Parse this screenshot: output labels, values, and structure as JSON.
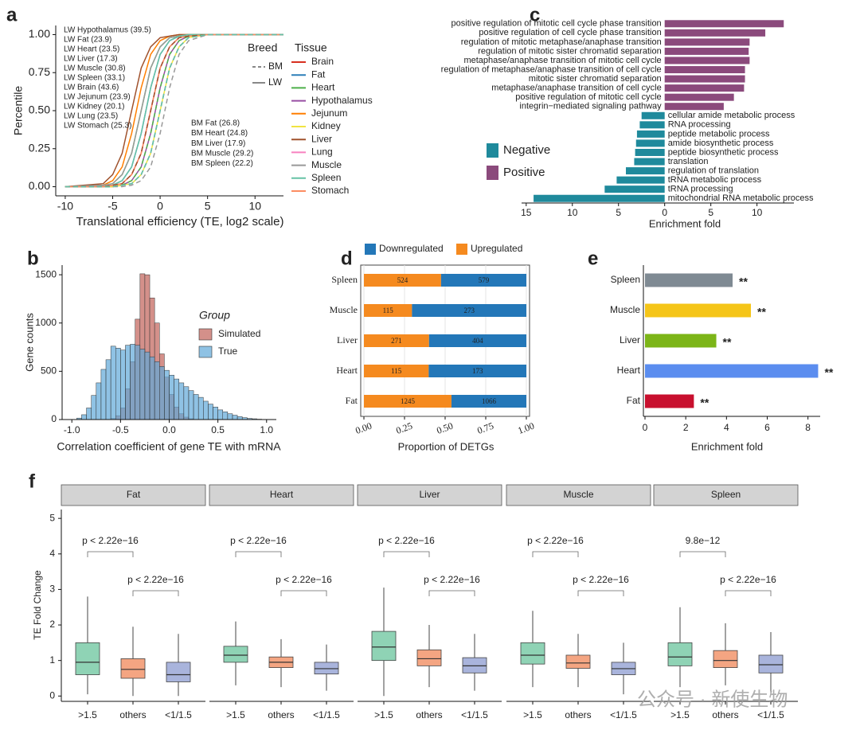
{
  "watermark": "公众号 · 新使生物",
  "chart_data": [
    {
      "type": "line",
      "label": "a",
      "xlabel": "Translational efficiency (TE, log2 scale)",
      "ylabel": "Percentile",
      "x": [
        -10,
        -6,
        -5,
        -4,
        -3,
        -2,
        -1,
        0,
        1,
        2,
        3,
        5,
        13
      ],
      "xlim": [
        -11,
        13
      ],
      "xticks": [
        -10,
        -5,
        0,
        5,
        10
      ],
      "ylim": [
        -0.06,
        1.06
      ],
      "yticks": [
        {
          "value": 0,
          "label": "0.00"
        },
        {
          "value": 0.25,
          "label": "0.25"
        },
        {
          "value": 0.5,
          "label": "0.50"
        },
        {
          "value": 0.75,
          "label": "0.75"
        },
        {
          "value": 1,
          "label": "1.00"
        }
      ],
      "legend_title": "Tissue",
      "breed_title": "Breed",
      "breeds": [
        "BM",
        "LW"
      ],
      "series": [
        {
          "name": "Brain",
          "breed": "LW",
          "color": "#d7301f",
          "values": [
            0,
            0,
            0.01,
            0.02,
            0.08,
            0.22,
            0.5,
            0.78,
            0.92,
            0.98,
            0.99,
            1,
            1
          ]
        },
        {
          "name": "Fat",
          "breed": "LW",
          "color": "#2c7fb8",
          "values": [
            0,
            0,
            0.01,
            0.04,
            0.13,
            0.35,
            0.65,
            0.87,
            0.96,
            0.99,
            1,
            1,
            1
          ]
        },
        {
          "name": "Heart",
          "breed": "LW",
          "color": "#4daf4a",
          "values": [
            0,
            0.01,
            0.02,
            0.08,
            0.22,
            0.5,
            0.78,
            0.92,
            0.98,
            0.99,
            1,
            1,
            1
          ]
        },
        {
          "name": "Hypothalamus",
          "breed": "LW",
          "color": "#984ea3",
          "values": [
            0,
            0,
            0,
            0.01,
            0.04,
            0.13,
            0.35,
            0.65,
            0.87,
            0.96,
            0.99,
            1,
            1
          ]
        },
        {
          "name": "Jejunum",
          "breed": "LW",
          "color": "#ff7f00",
          "values": [
            0,
            0.01,
            0.04,
            0.13,
            0.35,
            0.65,
            0.87,
            0.96,
            0.99,
            1,
            1,
            1,
            1
          ]
        },
        {
          "name": "Kidney",
          "breed": "LW",
          "color": "#f0e442",
          "values": [
            0,
            0,
            0,
            0.01,
            0.02,
            0.08,
            0.22,
            0.5,
            0.78,
            0.92,
            0.98,
            1,
            1
          ]
        },
        {
          "name": "Liver",
          "breed": "LW",
          "color": "#a0522d",
          "values": [
            0,
            0.02,
            0.08,
            0.22,
            0.5,
            0.78,
            0.92,
            0.98,
            0.99,
            1,
            1,
            1,
            1
          ]
        },
        {
          "name": "Lung",
          "breed": "LW",
          "color": "#f781bf",
          "values": [
            0,
            0,
            0.01,
            0.02,
            0.08,
            0.22,
            0.5,
            0.78,
            0.92,
            0.98,
            0.99,
            1,
            1
          ]
        },
        {
          "name": "Muscle",
          "breed": "LW",
          "color": "#999999",
          "values": [
            0,
            0.01,
            0.02,
            0.08,
            0.22,
            0.5,
            0.78,
            0.92,
            0.98,
            0.99,
            1,
            1,
            1
          ]
        },
        {
          "name": "Spleen",
          "breed": "LW",
          "color": "#66c2a5",
          "values": [
            0,
            0,
            0.01,
            0.04,
            0.13,
            0.35,
            0.65,
            0.87,
            0.96,
            0.99,
            1,
            1,
            1
          ]
        },
        {
          "name": "Stomach",
          "breed": "LW",
          "color": "#fc8d62",
          "values": [
            0,
            0,
            0.01,
            0.02,
            0.08,
            0.22,
            0.5,
            0.78,
            0.92,
            0.98,
            0.99,
            1,
            1
          ]
        },
        {
          "name": "Fat",
          "breed": "BM",
          "color": "#2c7fb8",
          "values": [
            0,
            0,
            0,
            0.01,
            0.02,
            0.08,
            0.22,
            0.5,
            0.78,
            0.92,
            0.98,
            1,
            1
          ]
        },
        {
          "name": "Heart",
          "breed": "BM",
          "color": "#4daf4a",
          "values": [
            0,
            0,
            0,
            0.01,
            0.04,
            0.13,
            0.35,
            0.65,
            0.87,
            0.96,
            0.99,
            1,
            1
          ]
        },
        {
          "name": "Liver",
          "breed": "BM",
          "color": "#a0522d",
          "values": [
            0,
            0,
            0.01,
            0.02,
            0.08,
            0.22,
            0.5,
            0.78,
            0.92,
            0.98,
            0.99,
            1,
            1
          ]
        },
        {
          "name": "Muscle",
          "breed": "BM",
          "color": "#999999",
          "values": [
            0,
            0,
            0,
            0,
            0.01,
            0.04,
            0.13,
            0.35,
            0.65,
            0.87,
            0.96,
            1,
            1
          ]
        },
        {
          "name": "Spleen",
          "breed": "BM",
          "color": "#66c2a5",
          "values": [
            0,
            0,
            0,
            0.01,
            0.02,
            0.08,
            0.22,
            0.5,
            0.78,
            0.92,
            0.98,
            1,
            1
          ]
        }
      ],
      "lw_labels": [
        "LW Hypothalamus (39.5)",
        "LW Fat (23.9)",
        "LW Heart (23.5)",
        "LW Liver (17.3)",
        "LW Muscle (30.8)",
        "LW Spleen (33.1)",
        "LW Brain (43.6)",
        "LW Jejunum (23.9)",
        "LW Kidney (20.1)",
        "LW Lung (23.5)",
        "LW Stomach (25.3)"
      ],
      "bm_labels": [
        "BM Fat (26.8)",
        "BM Heart (24.8)",
        "BM Liver (17.9)",
        "BM Muscle (29.2)",
        "BM Spleen (22.2)"
      ]
    },
    {
      "type": "histogram",
      "label": "b",
      "xlabel": "Correlation coefficient of gene TE with mRNA",
      "ylabel": "Gene counts",
      "legend_title": "Group",
      "bins": [
        -0.95,
        -0.9,
        -0.85,
        -0.8,
        -0.75,
        -0.7,
        -0.65,
        -0.6,
        -0.55,
        -0.5,
        -0.45,
        -0.4,
        -0.35,
        -0.3,
        -0.25,
        -0.2,
        -0.15,
        -0.1,
        -0.05,
        0,
        0.05,
        0.1,
        0.15,
        0.2,
        0.25,
        0.3,
        0.35,
        0.4,
        0.45,
        0.5,
        0.55,
        0.6,
        0.65,
        0.7,
        0.75,
        0.8,
        0.85,
        0.9,
        0.95,
        1.0
      ],
      "series": [
        {
          "name": "Simulated",
          "color": "#d4908a",
          "values": [
            0,
            0,
            0,
            0,
            0,
            0,
            0,
            10,
            40,
            120,
            320,
            600,
            1040,
            1510,
            1500,
            1260,
            1000,
            680,
            440,
            260,
            130,
            60,
            25,
            8,
            0,
            0,
            0,
            0,
            0,
            0,
            0,
            0,
            0,
            0,
            0,
            0,
            0,
            0,
            0
          ]
        },
        {
          "name": "True",
          "color": "#5fa8d8",
          "values": [
            15,
            50,
            120,
            250,
            380,
            520,
            620,
            760,
            740,
            720,
            770,
            780,
            770,
            730,
            700,
            650,
            600,
            550,
            510,
            460,
            420,
            380,
            340,
            300,
            260,
            230,
            190,
            160,
            130,
            100,
            80,
            60,
            45,
            30,
            20,
            12,
            8,
            4,
            2
          ]
        }
      ],
      "xlim": [
        -1.1,
        1.1
      ],
      "xticks": [
        {
          "value": -1,
          "label": "-1.0"
        },
        {
          "value": -0.5,
          "label": "-0.5"
        },
        {
          "value": 0,
          "label": "0.0"
        },
        {
          "value": 0.5,
          "label": "0.5"
        },
        {
          "value": 1,
          "label": "1.0"
        }
      ],
      "ylim": [
        0,
        1600
      ],
      "yticks": [
        0,
        500,
        1000,
        1500
      ]
    },
    {
      "type": "bar",
      "orientation": "horizontal",
      "label": "c",
      "xlabel": "Enrichment fold",
      "categories": [
        "positive regulation of mitotic cell cycle phase transition",
        "positive regulation of cell cycle phase transition",
        "regulation of mitotic metaphase/anaphase transition",
        "regulation of mitotic sister chromatid separation",
        "metaphase/anaphase transition of mitotic cell cycle",
        "regulation of metaphase/anaphase transition of cell cycle",
        "mitotic sister chromatid separation",
        "metaphase/anaphase transition of cell cycle",
        "positive regulation of mitotic cell cycle",
        "integrin−mediated signaling pathway",
        "cellular amide metabolic process",
        "RNA processing",
        "peptide metabolic process",
        "amide biosynthetic process",
        "peptide biosynthetic process",
        "translation",
        "regulation of translation",
        "tRNA metabolic process",
        "tRNA processing",
        "mitochondrial RNA metabolic process"
      ],
      "series": [
        {
          "name": "Negative",
          "color": "#1f8a9c",
          "values": [
            null,
            null,
            null,
            null,
            null,
            null,
            null,
            null,
            null,
            null,
            -2.5,
            -2.7,
            -3.0,
            -3.1,
            -3.2,
            -3.3,
            -4.2,
            -5.2,
            -6.5,
            -14.2
          ]
        },
        {
          "name": "Positive",
          "color": "#8b4a7c",
          "values": [
            12.9,
            10.9,
            9.2,
            9.1,
            9.2,
            8.7,
            8.7,
            8.6,
            7.5,
            6.4,
            null,
            null,
            null,
            null,
            null,
            null,
            null,
            null,
            null,
            null
          ]
        }
      ],
      "xlim": [
        -15.5,
        14
      ],
      "xticks": [
        {
          "value": -15,
          "label": "15"
        },
        {
          "value": -10,
          "label": "10"
        },
        {
          "value": -5,
          "label": "5"
        },
        0,
        5,
        10
      ]
    },
    {
      "type": "stacked_bar",
      "label": "d",
      "xlabel": "Proportion of DETGs",
      "categories": [
        "Spleen",
        "Muscle",
        "Liver",
        "Heart",
        "Fat"
      ],
      "series": [
        {
          "name": "Downregulated",
          "color": "#2377b8",
          "values": [
            0.525,
            0.704,
            0.599,
            0.601,
            0.461
          ],
          "counts": [
            579,
            273,
            404,
            173,
            1066
          ]
        },
        {
          "name": "Upregulated",
          "color": "#f58a1f",
          "values": [
            0.475,
            0.296,
            0.401,
            0.399,
            0.539
          ],
          "counts": [
            524,
            115,
            271,
            115,
            1245
          ]
        }
      ],
      "xlim": [
        0,
        1
      ],
      "xticks": [
        {
          "value": 0,
          "label": "0.00"
        },
        {
          "value": 0.25,
          "label": "0.25"
        },
        {
          "value": 0.5,
          "label": "0.50"
        },
        {
          "value": 0.75,
          "label": "0.75"
        },
        {
          "value": 1,
          "label": "1.00"
        }
      ],
      "grid": true
    },
    {
      "type": "bar",
      "orientation": "horizontal",
      "label": "e",
      "xlabel": "Enrichment fold",
      "categories": [
        "Spleen",
        "Muscle",
        "Liver",
        "Heart",
        "Fat"
      ],
      "values": [
        4.3,
        5.2,
        3.5,
        8.5,
        2.4
      ],
      "colors": [
        "#7f8a93",
        "#f5c518",
        "#7cb518",
        "#5b8def",
        "#c8102e"
      ],
      "labels": [
        "**",
        "**",
        "**",
        "**",
        "**"
      ],
      "xlim": [
        0,
        8.6
      ],
      "xticks": [
        0,
        2,
        4,
        6,
        8
      ]
    },
    {
      "type": "box",
      "label": "f",
      "ylabel": "TE  Fold Change",
      "groups": [
        ">1.5",
        "others",
        "<1/1.5"
      ],
      "colors": [
        "#8fd3b5",
        "#f4a582",
        "#a9b4dc"
      ],
      "ylim": [
        -0.15,
        5.25
      ],
      "yticks": [
        0,
        1,
        2,
        3,
        4,
        5
      ],
      "facets": [
        {
          "name": "Fat",
          "p_values": [
            "p < 2.22e−16",
            "p < 2.22e−16"
          ],
          "boxes": [
            {
              "whislo": 0.05,
              "q1": 0.6,
              "med": 0.95,
              "q3": 1.5,
              "whishi": 2.8
            },
            {
              "whislo": 0,
              "q1": 0.5,
              "med": 0.75,
              "q3": 1.05,
              "whishi": 1.95
            },
            {
              "whislo": 0,
              "q1": 0.4,
              "med": 0.6,
              "q3": 0.95,
              "whishi": 1.75
            }
          ]
        },
        {
          "name": "Heart",
          "p_values": [
            "p < 2.22e−16",
            "p < 2.22e−16"
          ],
          "boxes": [
            {
              "whislo": 0.3,
              "q1": 0.95,
              "med": 1.15,
              "q3": 1.4,
              "whishi": 2.1
            },
            {
              "whislo": 0.25,
              "q1": 0.8,
              "med": 0.95,
              "q3": 1.1,
              "whishi": 1.6
            },
            {
              "whislo": 0.15,
              "q1": 0.62,
              "med": 0.77,
              "q3": 0.95,
              "whishi": 1.45
            }
          ]
        },
        {
          "name": "Liver",
          "p_values": [
            "p < 2.22e−16",
            "p < 2.22e−16"
          ],
          "boxes": [
            {
              "whislo": 0,
              "q1": 1.0,
              "med": 1.38,
              "q3": 1.82,
              "whishi": 3.05
            },
            {
              "whislo": 0.25,
              "q1": 0.85,
              "med": 1.05,
              "q3": 1.3,
              "whishi": 2.0
            },
            {
              "whislo": 0.15,
              "q1": 0.65,
              "med": 0.85,
              "q3": 1.08,
              "whishi": 1.75
            }
          ]
        },
        {
          "name": "Muscle",
          "p_values": [
            "p < 2.22e−16",
            "p < 2.22e−16"
          ],
          "boxes": [
            {
              "whislo": 0.25,
              "q1": 0.9,
              "med": 1.15,
              "q3": 1.5,
              "whishi": 2.4
            },
            {
              "whislo": 0.25,
              "q1": 0.78,
              "med": 0.93,
              "q3": 1.15,
              "whishi": 1.75
            },
            {
              "whislo": 0.05,
              "q1": 0.6,
              "med": 0.77,
              "q3": 0.95,
              "whishi": 1.5
            }
          ]
        },
        {
          "name": "Spleen",
          "p_values": [
            "9.8e−12",
            "p < 2.22e−16"
          ],
          "boxes": [
            {
              "whislo": 0.25,
              "q1": 0.85,
              "med": 1.1,
              "q3": 1.5,
              "whishi": 2.5
            },
            {
              "whislo": 0.3,
              "q1": 0.8,
              "med": 1.0,
              "q3": 1.28,
              "whishi": 2.05
            },
            {
              "whislo": 0.1,
              "q1": 0.65,
              "med": 0.88,
              "q3": 1.15,
              "whishi": 1.8
            }
          ]
        }
      ]
    }
  ]
}
